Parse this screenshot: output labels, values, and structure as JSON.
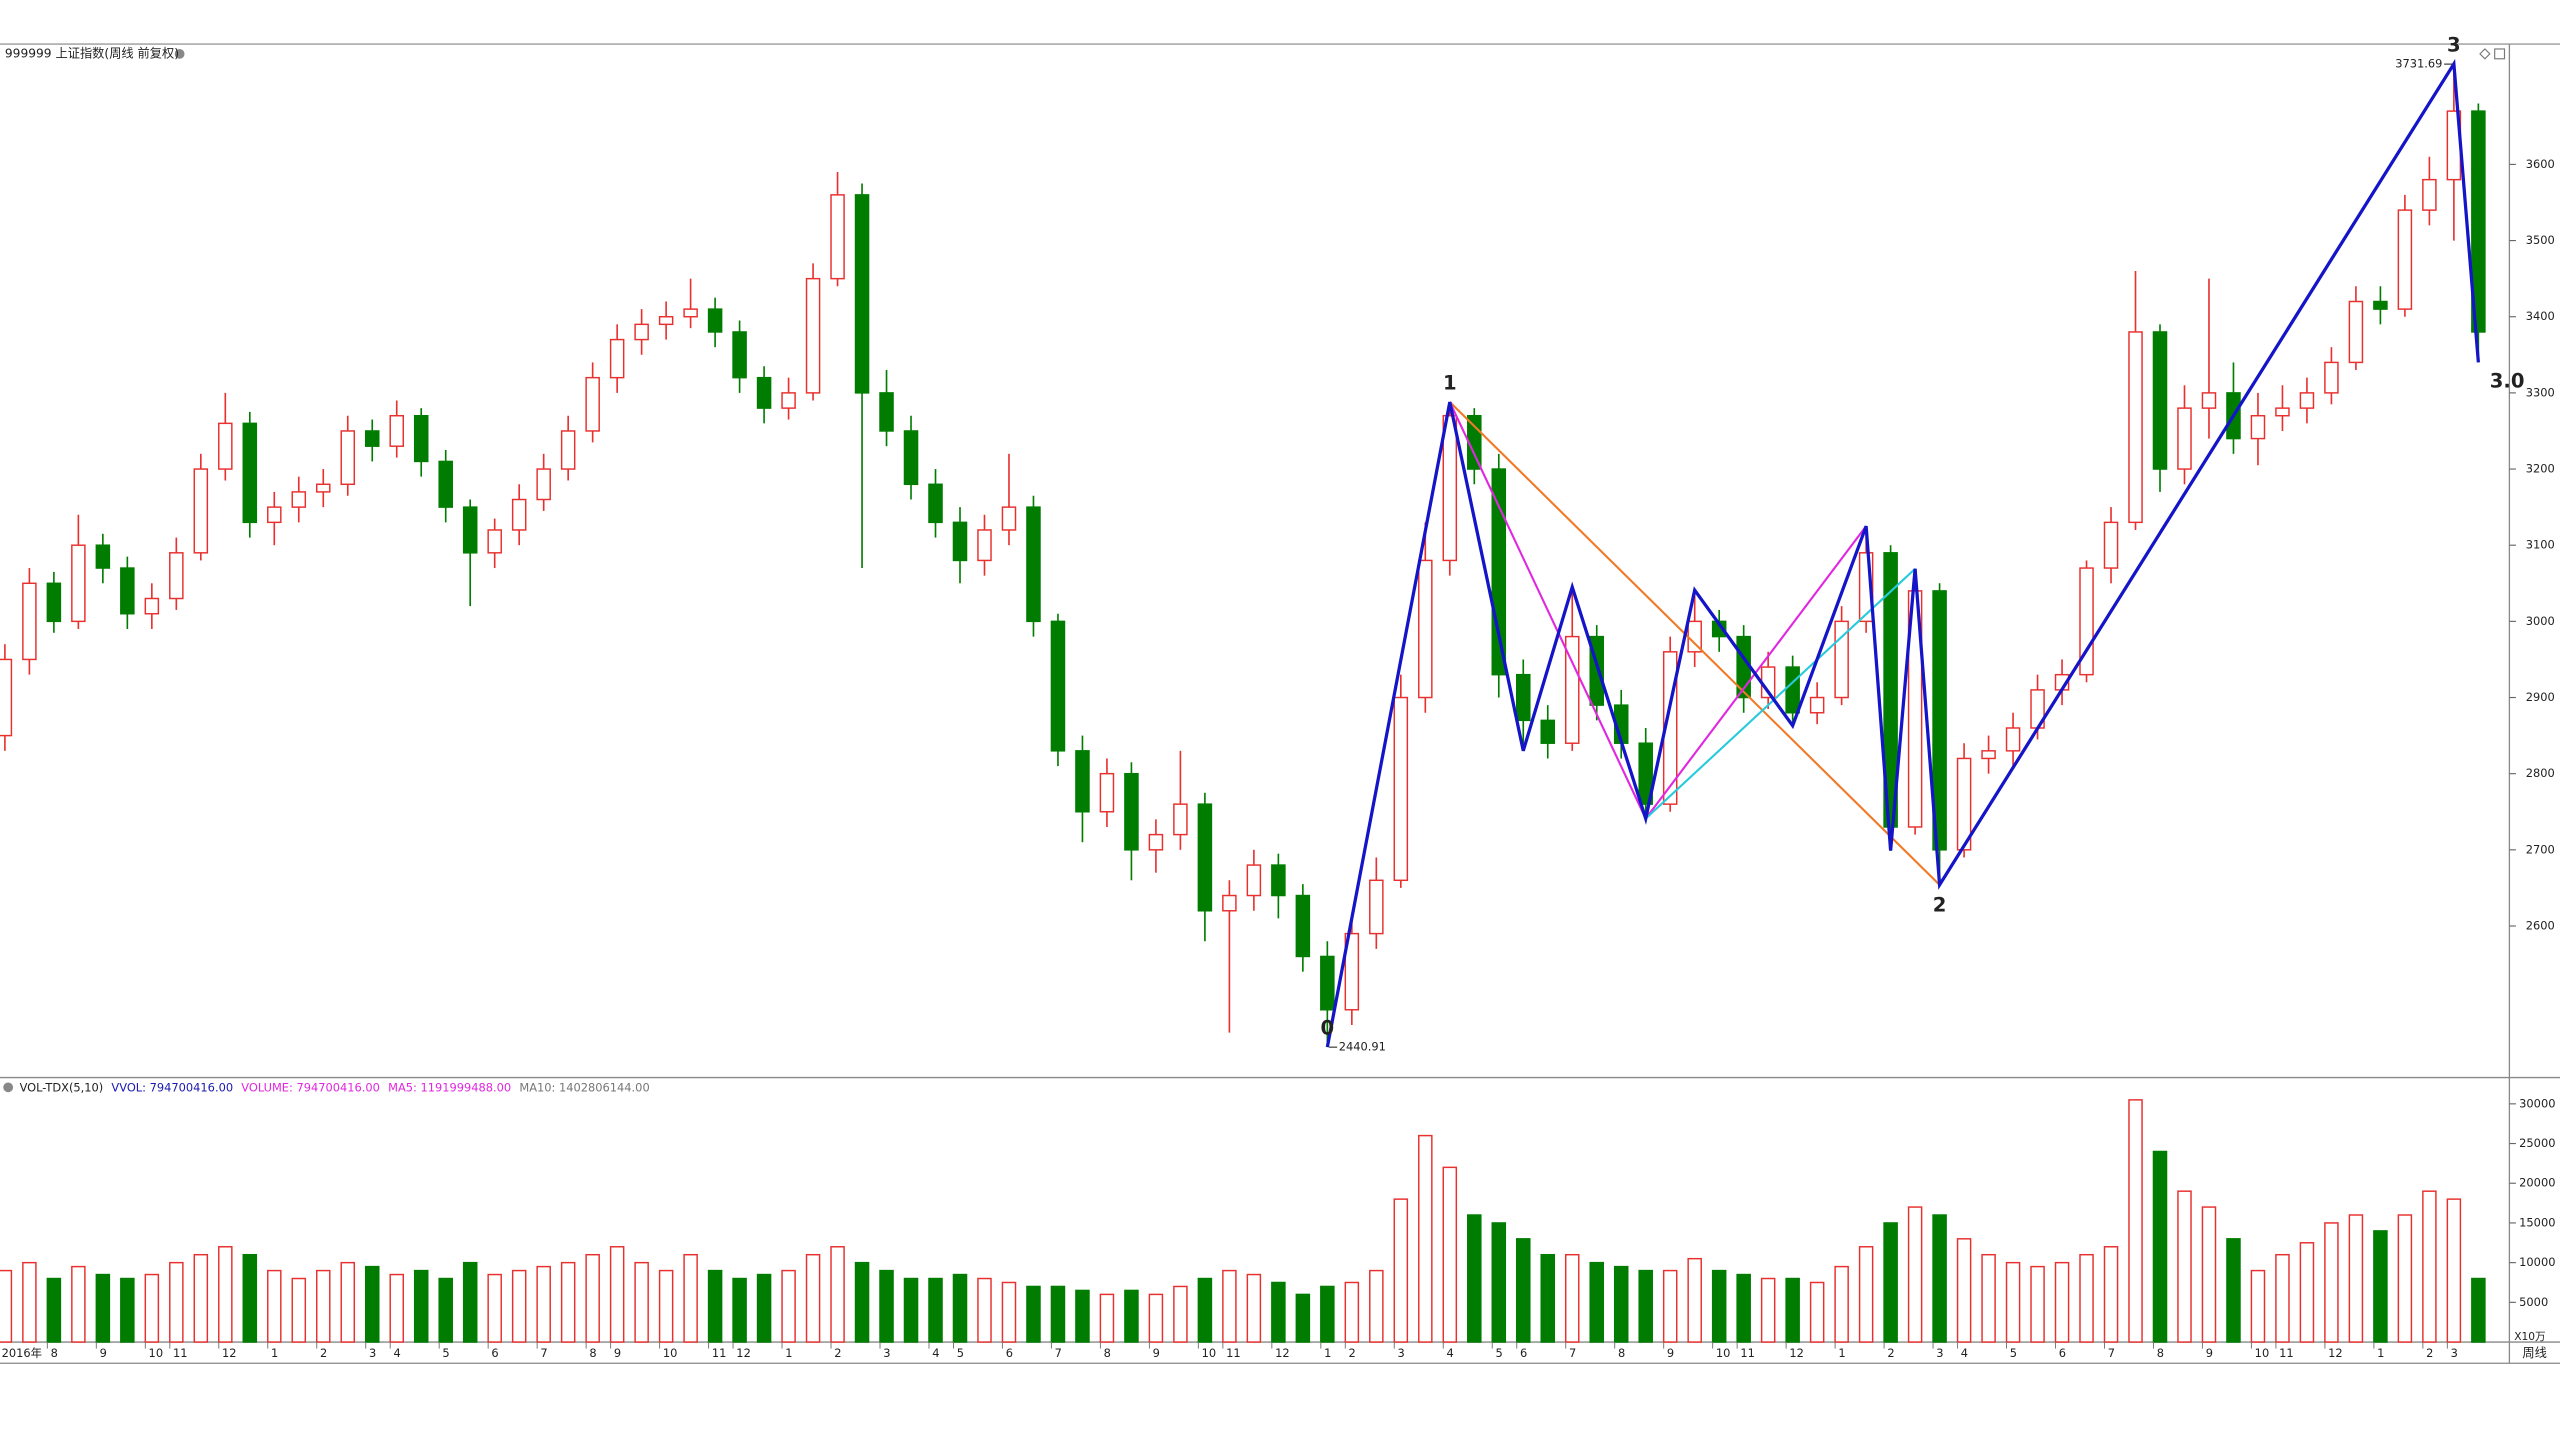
{
  "chart_data": [
    {
      "type": "candlestick",
      "title": "999999 上证指数(周线 前复权)",
      "up_color": "#e8312f",
      "down_color": "#007d00",
      "ylim": [
        2401,
        3758
      ],
      "yticks": [
        2600,
        2700,
        2800,
        2900,
        3000,
        3100,
        3200,
        3300,
        3400,
        3500,
        3600
      ],
      "candles": [
        [
          2850,
          2970,
          2830,
          2950
        ],
        [
          2950,
          3070,
          2930,
          3050
        ],
        [
          3050,
          3065,
          2985,
          3000
        ],
        [
          3000,
          3140,
          2990,
          3100
        ],
        [
          3100,
          3115,
          3050,
          3070
        ],
        [
          3070,
          3085,
          2990,
          3010
        ],
        [
          3010,
          3050,
          2990,
          3030
        ],
        [
          3030,
          3110,
          3015,
          3090
        ],
        [
          3090,
          3220,
          3080,
          3200
        ],
        [
          3200,
          3300,
          3185,
          3260
        ],
        [
          3260,
          3275,
          3110,
          3130
        ],
        [
          3130,
          3170,
          3100,
          3150
        ],
        [
          3150,
          3190,
          3130,
          3170
        ],
        [
          3170,
          3200,
          3150,
          3180
        ],
        [
          3180,
          3270,
          3165,
          3250
        ],
        [
          3250,
          3265,
          3210,
          3230
        ],
        [
          3230,
          3290,
          3215,
          3270
        ],
        [
          3270,
          3280,
          3190,
          3210
        ],
        [
          3210,
          3225,
          3130,
          3150
        ],
        [
          3150,
          3160,
          3020,
          3090
        ],
        [
          3090,
          3135,
          3070,
          3120
        ],
        [
          3120,
          3180,
          3100,
          3160
        ],
        [
          3160,
          3220,
          3145,
          3200
        ],
        [
          3200,
          3270,
          3185,
          3250
        ],
        [
          3250,
          3340,
          3235,
          3320
        ],
        [
          3320,
          3390,
          3300,
          3370
        ],
        [
          3370,
          3410,
          3350,
          3390
        ],
        [
          3390,
          3420,
          3370,
          3400
        ],
        [
          3400,
          3450,
          3385,
          3410
        ],
        [
          3410,
          3425,
          3360,
          3380
        ],
        [
          3380,
          3395,
          3300,
          3320
        ],
        [
          3320,
          3335,
          3260,
          3280
        ],
        [
          3280,
          3320,
          3265,
          3300
        ],
        [
          3300,
          3470,
          3290,
          3450
        ],
        [
          3450,
          3590,
          3440,
          3560
        ],
        [
          3560,
          3575,
          3070,
          3300
        ],
        [
          3300,
          3330,
          3230,
          3250
        ],
        [
          3250,
          3270,
          3160,
          3180
        ],
        [
          3180,
          3200,
          3110,
          3130
        ],
        [
          3130,
          3150,
          3050,
          3080
        ],
        [
          3080,
          3140,
          3060,
          3120
        ],
        [
          3120,
          3220,
          3100,
          3150
        ],
        [
          3150,
          3165,
          2980,
          3000
        ],
        [
          3000,
          3010,
          2810,
          2830
        ],
        [
          2830,
          2850,
          2710,
          2750
        ],
        [
          2750,
          2820,
          2730,
          2800
        ],
        [
          2800,
          2815,
          2660,
          2700
        ],
        [
          2700,
          2740,
          2670,
          2720
        ],
        [
          2720,
          2830,
          2700,
          2760
        ],
        [
          2760,
          2775,
          2580,
          2620
        ],
        [
          2620,
          2660,
          2460,
          2640
        ],
        [
          2640,
          2700,
          2620,
          2680
        ],
        [
          2680,
          2695,
          2610,
          2640
        ],
        [
          2640,
          2655,
          2540,
          2560
        ],
        [
          2560,
          2580,
          2441,
          2490
        ],
        [
          2490,
          2610,
          2470,
          2590
        ],
        [
          2590,
          2690,
          2570,
          2660
        ],
        [
          2660,
          2930,
          2650,
          2900
        ],
        [
          2900,
          3130,
          2880,
          3080
        ],
        [
          3080,
          3288,
          3060,
          3270
        ],
        [
          3270,
          3280,
          3180,
          3200
        ],
        [
          3200,
          3220,
          2900,
          2930
        ],
        [
          2930,
          2950,
          2830,
          2870
        ],
        [
          2870,
          2890,
          2820,
          2840
        ],
        [
          2840,
          3045,
          2830,
          2980
        ],
        [
          2980,
          2995,
          2870,
          2890
        ],
        [
          2890,
          2910,
          2820,
          2840
        ],
        [
          2840,
          2860,
          2741,
          2760
        ],
        [
          2760,
          2980,
          2750,
          2960
        ],
        [
          2960,
          3041,
          2940,
          3000
        ],
        [
          3000,
          3015,
          2960,
          2980
        ],
        [
          2980,
          2995,
          2880,
          2900
        ],
        [
          2900,
          2960,
          2885,
          2940
        ],
        [
          2940,
          2955,
          2863,
          2880
        ],
        [
          2880,
          2920,
          2865,
          2900
        ],
        [
          2900,
          3020,
          2890,
          3000
        ],
        [
          3000,
          3125,
          2985,
          3090
        ],
        [
          3090,
          3100,
          2699,
          2730
        ],
        [
          2730,
          3069,
          2720,
          3040
        ],
        [
          3040,
          3050,
          2654,
          2700
        ],
        [
          2700,
          2840,
          2690,
          2820
        ],
        [
          2820,
          2850,
          2800,
          2830
        ],
        [
          2830,
          2880,
          2810,
          2860
        ],
        [
          2860,
          2930,
          2845,
          2910
        ],
        [
          2910,
          2950,
          2890,
          2930
        ],
        [
          2930,
          3080,
          2920,
          3070
        ],
        [
          3070,
          3150,
          3050,
          3130
        ],
        [
          3130,
          3460,
          3120,
          3380
        ],
        [
          3380,
          3390,
          3170,
          3200
        ],
        [
          3200,
          3310,
          3180,
          3280
        ],
        [
          3280,
          3450,
          3240,
          3300
        ],
        [
          3300,
          3340,
          3220,
          3240
        ],
        [
          3240,
          3300,
          3205,
          3270
        ],
        [
          3270,
          3310,
          3250,
          3280
        ],
        [
          3280,
          3320,
          3260,
          3300
        ],
        [
          3300,
          3360,
          3285,
          3340
        ],
        [
          3340,
          3440,
          3330,
          3420
        ],
        [
          3420,
          3440,
          3390,
          3410
        ],
        [
          3410,
          3560,
          3400,
          3540
        ],
        [
          3540,
          3610,
          3520,
          3580
        ],
        [
          3580,
          3732,
          3500,
          3670
        ],
        [
          3670,
          3680,
          3340,
          3380
        ]
      ],
      "low": {
        "x": 54,
        "value": 2440.91
      },
      "high": {
        "x": 100,
        "value": 3731.69
      },
      "waves": {
        "color": "#1414c8",
        "points": [
          [
            54,
            2441
          ],
          [
            59,
            3288
          ],
          [
            62,
            2830
          ],
          [
            64,
            3045
          ],
          [
            67,
            2741
          ],
          [
            69,
            3041
          ],
          [
            73,
            2863
          ],
          [
            76,
            3125
          ],
          [
            77,
            2699
          ],
          [
            78,
            3069
          ],
          [
            79,
            2654
          ],
          [
            100,
            3732
          ],
          [
            101,
            3340
          ]
        ],
        "labels": [
          "0",
          "1",
          null,
          null,
          null,
          null,
          null,
          null,
          null,
          null,
          "2",
          "3",
          "3.0"
        ]
      },
      "lines": [
        {
          "color": "#f07a28",
          "points": [
            [
              59,
              3288
            ],
            [
              79,
              2654
            ]
          ]
        },
        {
          "color": "#e028e0",
          "points": [
            [
              59,
              3288
            ],
            [
              67,
              2741
            ],
            [
              76,
              3125
            ]
          ]
        },
        {
          "color": "#28cadc",
          "points": [
            [
              67,
              2741
            ],
            [
              78,
              3069
            ]
          ]
        }
      ]
    },
    {
      "type": "bar",
      "legend": [
        {
          "text": "VOL-TDX(5,10)",
          "color": "#222222"
        },
        {
          "text": "VVOL: 794700416.00",
          "color": "#1a1ab0"
        },
        {
          "text": "VOLUME: 794700416.00",
          "color": "#e028e0"
        },
        {
          "text": "MA5: 1191999488.00",
          "color": "#e028e0"
        },
        {
          "text": "MA10: 1402806144.00",
          "color": "#777777"
        }
      ],
      "unit": "X10万",
      "period": "周线",
      "ylim": [
        0,
        32900
      ],
      "yticks": [
        5000,
        10000,
        15000,
        20000,
        25000,
        30000
      ],
      "values": [
        9000,
        10000,
        8000,
        9500,
        8500,
        8000,
        8500,
        10000,
        11000,
        12000,
        11000,
        9000,
        8000,
        9000,
        10000,
        9500,
        8500,
        9000,
        8000,
        10000,
        8500,
        9000,
        9500,
        10000,
        11000,
        12000,
        10000,
        9000,
        11000,
        9000,
        8000,
        8500,
        9000,
        11000,
        12000,
        10000,
        9000,
        8000,
        8000,
        8500,
        8000,
        7500,
        7000,
        7000,
        6500,
        6000,
        6500,
        6000,
        7000,
        8000,
        9000,
        8500,
        7500,
        6000,
        7000,
        7500,
        9000,
        18000,
        26000,
        22000,
        16000,
        15000,
        13000,
        11000,
        11000,
        10000,
        9500,
        9000,
        9000,
        10500,
        9000,
        8500,
        8000,
        8000,
        7500,
        9500,
        12000,
        15000,
        17000,
        16000,
        13000,
        11000,
        10000,
        9500,
        10000,
        11000,
        12000,
        30500,
        24000,
        19000,
        17000,
        13000,
        9000,
        11000,
        12500,
        15000,
        16000,
        14000,
        16000,
        19000,
        18000,
        8000
      ],
      "categories": [
        "2016年",
        null,
        "8",
        null,
        "9",
        null,
        "10",
        "11",
        null,
        "12",
        null,
        "1",
        null,
        "2",
        null,
        "3",
        "4",
        null,
        "5",
        null,
        "6",
        null,
        "7",
        null,
        "8",
        "9",
        null,
        "10",
        null,
        "11",
        "12",
        null,
        "1",
        null,
        "2",
        null,
        "3",
        null,
        "4",
        "5",
        null,
        "6",
        null,
        "7",
        null,
        "8",
        null,
        "9",
        null,
        "10",
        "11",
        null,
        "12",
        null,
        "1",
        "2",
        null,
        "3",
        null,
        "4",
        null,
        "5",
        "6",
        null,
        "7",
        null,
        "8",
        null,
        "9",
        null,
        "10",
        "11",
        null,
        "12",
        null,
        "1",
        null,
        "2",
        null,
        "3",
        "4",
        null,
        "5",
        null,
        "6",
        null,
        "7",
        null,
        "8",
        null,
        "9",
        null,
        "10",
        "11",
        null,
        "12",
        null,
        "1",
        null,
        "2",
        "3",
        null
      ]
    }
  ]
}
